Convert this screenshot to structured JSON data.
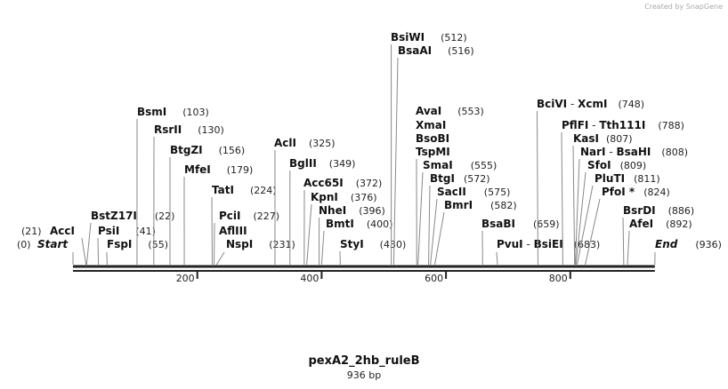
{
  "credit": "Created by SnapGene",
  "title": "pexA2_2hb_ruleB",
  "length": "936 bp",
  "ticks": [
    "200",
    "400",
    "600",
    "800"
  ],
  "enzymes": [
    {
      "names": [
        "Start"
      ],
      "site": "(0)",
      "italic": true
    },
    {
      "names": [
        "AccI"
      ],
      "site": "(21)"
    },
    {
      "names": [
        "BstZ17I"
      ],
      "site": "(22)"
    },
    {
      "names": [
        "PsiI"
      ],
      "site": "(41)"
    },
    {
      "names": [
        "FspI"
      ],
      "site": "(55)"
    },
    {
      "names": [
        "BsmI"
      ],
      "site": "(103)"
    },
    {
      "names": [
        "RsrII"
      ],
      "site": "(130)"
    },
    {
      "names": [
        "BtgZI"
      ],
      "site": "(156)"
    },
    {
      "names": [
        "MfeI"
      ],
      "site": "(179)"
    },
    {
      "names": [
        "TatI"
      ],
      "site": "(224)"
    },
    {
      "names": [
        "PciI"
      ],
      "site": "(227)"
    },
    {
      "names": [
        "AflIII"
      ],
      "site": ""
    },
    {
      "names": [
        "NspI"
      ],
      "site": "(231)"
    },
    {
      "names": [
        "AclI"
      ],
      "site": "(325)"
    },
    {
      "names": [
        "BglII"
      ],
      "site": "(349)"
    },
    {
      "names": [
        "Acc65I"
      ],
      "site": "(372)"
    },
    {
      "names": [
        "KpnI"
      ],
      "site": "(376)"
    },
    {
      "names": [
        "NheI"
      ],
      "site": "(396)"
    },
    {
      "names": [
        "BmtI"
      ],
      "site": "(400)"
    },
    {
      "names": [
        "StyI"
      ],
      "site": "(430)"
    },
    {
      "names": [
        "BsiWI"
      ],
      "site": "(512)"
    },
    {
      "names": [
        "BsaAI"
      ],
      "site": "(516)"
    },
    {
      "names": [
        "AvaI"
      ],
      "site": "(553)"
    },
    {
      "names": [
        "XmaI"
      ],
      "site": ""
    },
    {
      "names": [
        "BsoBI"
      ],
      "site": ""
    },
    {
      "names": [
        "TspMI"
      ],
      "site": ""
    },
    {
      "names": [
        "SmaI"
      ],
      "site": "(555)"
    },
    {
      "names": [
        "BtgI"
      ],
      "site": "(572)"
    },
    {
      "names": [
        "SacII"
      ],
      "site": "(575)"
    },
    {
      "names": [
        "BmrI"
      ],
      "site": "(582)"
    },
    {
      "names": [
        "BsaBI"
      ],
      "site": "(659)"
    },
    {
      "names": [
        "PvuI",
        "BsiEI"
      ],
      "site": "(683)"
    },
    {
      "names": [
        "BciVI",
        "XcmI"
      ],
      "site": "(748)"
    },
    {
      "names": [
        "PflFI",
        "Tth111I"
      ],
      "site": "(788)"
    },
    {
      "names": [
        "KasI"
      ],
      "site": "(807)"
    },
    {
      "names": [
        "NarI",
        "BsaHI"
      ],
      "site": "(808)"
    },
    {
      "names": [
        "SfoI"
      ],
      "site": "(809)"
    },
    {
      "names": [
        "PluTI"
      ],
      "site": "(811)"
    },
    {
      "names": [
        "PfoI *"
      ],
      "site": "(824)"
    },
    {
      "names": [
        "BsrDI"
      ],
      "site": "(886)"
    },
    {
      "names": [
        "AfeI"
      ],
      "site": "(892)"
    },
    {
      "names": [
        "End"
      ],
      "site": "(936)",
      "italic": true
    }
  ],
  "separator": " - "
}
